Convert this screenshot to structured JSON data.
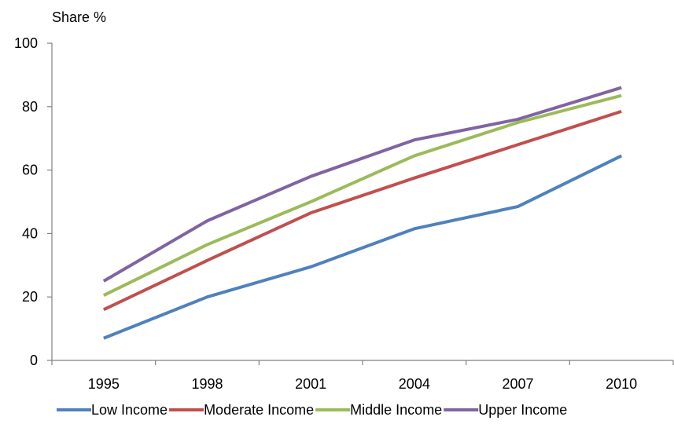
{
  "chart_data": {
    "type": "line",
    "ylabel": "Share %",
    "xlabel": "",
    "title": "",
    "categories": [
      "1995",
      "1998",
      "2001",
      "2004",
      "2007",
      "2010"
    ],
    "ylim": [
      0,
      100
    ],
    "yticks": [
      "0",
      "20",
      "40",
      "60",
      "80",
      "100"
    ],
    "grid": false,
    "legend_position": "bottom",
    "series": [
      {
        "name": "Low Income",
        "color": "#4F81BD",
        "values": [
          7,
          20,
          29.5,
          41.5,
          48.5,
          64.5
        ]
      },
      {
        "name": "Moderate Income",
        "color": "#C0504D",
        "values": [
          16,
          31.5,
          46.5,
          57.5,
          68,
          78.5
        ]
      },
      {
        "name": "Middle Income",
        "color": "#9BBB59",
        "values": [
          20.5,
          36.5,
          50,
          64.5,
          75,
          83.5
        ]
      },
      {
        "name": "Upper Income",
        "color": "#8064A2",
        "values": [
          25,
          44,
          58,
          69.5,
          76,
          86
        ]
      }
    ]
  }
}
